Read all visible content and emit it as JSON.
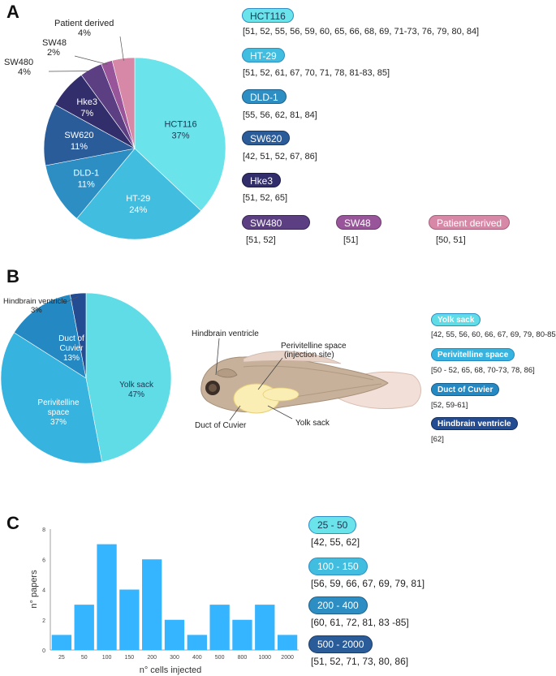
{
  "panels": {
    "a": "A",
    "b": "B",
    "c": "C"
  },
  "colors": {
    "hct116": "#6ae3ea",
    "ht29": "#41bde0",
    "dld1": "#2c8ec3",
    "sw620": "#2b5c9a",
    "hke3": "#322e6c",
    "sw480": "#5c3f82",
    "sw48": "#99559a",
    "patient": "#d788a6",
    "yolk": "#5fdce6",
    "peri": "#36b3de",
    "cuvier": "#2489c3",
    "hind": "#234c92",
    "bar": "#35b4ff",
    "axis": "#888888"
  },
  "chart_data": [
    {
      "type": "pie",
      "title": "Cell lines",
      "slices": [
        {
          "name": "HCT116",
          "value": 37,
          "label": "HCT116",
          "pct": "37%",
          "refs": "[51, 52, 55, 56, 59, 60, 65, 66, 68, 69, 71-73, 76, 79, 80, 84]"
        },
        {
          "name": "HT-29",
          "value": 24,
          "label": "HT-29",
          "pct": "24%",
          "refs": "[51, 52, 61, 67, 70, 71, 78, 81-83, 85]"
        },
        {
          "name": "DLD-1",
          "value": 11,
          "label": "DLD-1",
          "pct": "11%",
          "refs": "[55, 56, 62, 81, 84]"
        },
        {
          "name": "SW620",
          "value": 11,
          "label": "SW620",
          "pct": "11%",
          "refs": "[42, 51, 52, 67, 86]"
        },
        {
          "name": "Hke3",
          "value": 7,
          "label": "Hke3",
          "pct": "7%",
          "refs": "[51, 52, 65]"
        },
        {
          "name": "SW480",
          "value": 4,
          "label": "SW480",
          "pct": "4%",
          "refs": "[51, 52]"
        },
        {
          "name": "SW48",
          "value": 2,
          "label": "SW48",
          "pct": "2%",
          "refs": "[51]"
        },
        {
          "name": "Patient derived",
          "value": 4,
          "label": "Patient derived",
          "pct": "4%",
          "refs": "[50, 51]"
        }
      ]
    },
    {
      "type": "pie",
      "title": "Injection sites",
      "slices": [
        {
          "name": "Yolk sack",
          "value": 47,
          "label": "Yolk sack",
          "pct": "47%",
          "refs": "[42, 55, 56, 60, 66, 67, 69, 79, 80-85]"
        },
        {
          "name": "Perivitelline space",
          "value": 37,
          "label": "Perivitelline space",
          "pct": "37%",
          "refs": "[50 - 52, 65, 68, 70-73, 78, 86]"
        },
        {
          "name": "Duct of Cuvier",
          "value": 13,
          "label": "Duct of Cuvier",
          "pct": "13%",
          "refs": "[52, 59-61]"
        },
        {
          "name": "Hindbrain ventricle",
          "value": 3,
          "label": "Hindbrain ventricle",
          "pct": "3%",
          "refs": "[62]"
        }
      ]
    },
    {
      "type": "bar",
      "categories": [
        "25",
        "50",
        "100",
        "150",
        "200",
        "300",
        "400",
        "500",
        "800",
        "1000",
        "2000"
      ],
      "values": [
        1,
        3,
        7,
        4,
        6,
        2,
        1,
        3,
        2,
        3,
        1
      ],
      "xlabel": "n° cells injected",
      "ylabel": "n° papers",
      "ylim": [
        0,
        8
      ],
      "yticks": [
        "0",
        "2",
        "4",
        "6",
        "8"
      ],
      "ranges": [
        {
          "label": "25 - 50",
          "refs": "[42, 55, 62]"
        },
        {
          "label": "100 - 150",
          "refs": "[56, 59, 66, 67, 69, 79, 81]"
        },
        {
          "label": "200 - 400",
          "refs": "[60, 61, 72, 81, 83 -85]"
        },
        {
          "label": "500 - 2000",
          "refs": "[51, 52, 71, 73, 80, 86]"
        }
      ]
    }
  ],
  "fish": {
    "hindbrain": "Hindbrain ventricle",
    "peri_line1": "Perivitelline space",
    "peri_line2": "(injection site)",
    "cuvier": "Duct of Cuvier",
    "yolk": "Yolk sack"
  }
}
